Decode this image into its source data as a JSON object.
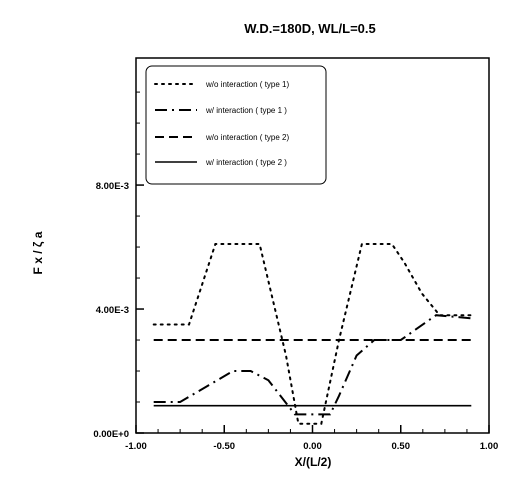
{
  "chart_data": {
    "type": "line",
    "title": "W.D.=180D, WL/L=0.5",
    "xlabel": "X/(L/2)",
    "ylabel": "F x / ζ a",
    "xlim": [
      -1.0,
      1.0
    ],
    "ylim": [
      0.0,
      0.0121
    ],
    "xticks": [
      -1.0,
      -0.5,
      0.0,
      0.5,
      1.0
    ],
    "xtick_labels": [
      "-1.00",
      "-0.50",
      "0.00",
      "0.50",
      "1.00"
    ],
    "yticks": [
      0.0,
      0.004,
      0.008
    ],
    "ytick_labels": [
      "0.00E+0",
      "4.00E-3",
      "8.00E-3"
    ],
    "grid": false,
    "legend_position": "top-left",
    "series": [
      {
        "name": "w/o interaction ( type 1)",
        "dash": "dotted",
        "x": [
          -0.9,
          -0.7,
          -0.55,
          -0.45,
          -0.3,
          -0.15,
          -0.08,
          0.05,
          0.15,
          0.28,
          0.45,
          0.52,
          0.62,
          0.72,
          0.9
        ],
        "y": [
          0.0035,
          0.0035,
          0.0061,
          0.0061,
          0.0061,
          0.0025,
          0.0003,
          0.0003,
          0.003,
          0.0061,
          0.0061,
          0.0055,
          0.0045,
          0.0038,
          0.0038
        ]
      },
      {
        "name": "w/  interaction ( type 1 )",
        "dash": "dashdot",
        "x": [
          -0.9,
          -0.75,
          -0.6,
          -0.45,
          -0.35,
          -0.25,
          -0.1,
          0.02,
          0.1,
          0.15,
          0.25,
          0.35,
          0.5,
          0.6,
          0.7,
          0.9
        ],
        "y": [
          0.001,
          0.001,
          0.0015,
          0.002,
          0.002,
          0.0017,
          0.0006,
          0.0006,
          0.0006,
          0.0012,
          0.0025,
          0.003,
          0.003,
          0.0034,
          0.0038,
          0.0037
        ]
      },
      {
        "name": "w/o interaction ( type 2)",
        "dash": "dashed",
        "x": [
          -0.9,
          0.9
        ],
        "y": [
          0.003,
          0.003
        ]
      },
      {
        "name": "w/  interaction ( type 2 )",
        "dash": "solid",
        "x": [
          -0.9,
          0.9
        ],
        "y": [
          0.00088,
          0.00088
        ]
      }
    ]
  }
}
